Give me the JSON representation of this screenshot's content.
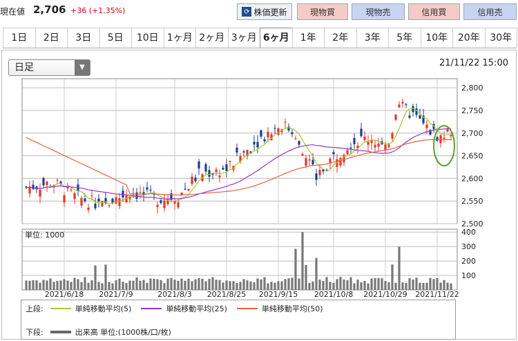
{
  "header": {
    "price_label": "現在値",
    "price_value": "2,706",
    "price_change": "+36 (+1.35%)",
    "update_button": "株価更新",
    "buy_spot": "現物買",
    "sell_spot": "現物売",
    "buy_margin": "信用買",
    "sell_margin": "信用売"
  },
  "tabs": [
    "1日",
    "2日",
    "3日",
    "5日",
    "10日",
    "1ヶ月",
    "2ヶ月",
    "3ヶ月",
    "6ヶ月",
    "1年",
    "2年",
    "3年",
    "5年",
    "10年",
    "20年",
    "30年"
  ],
  "active_tab": "6ヶ月",
  "controls": {
    "interval": "日足",
    "datetime": "21/11/22 15:00"
  },
  "chart_data": [
    {
      "type": "candlestick",
      "yticks": [
        2800,
        2750,
        2700,
        2650,
        2600,
        2550,
        2500
      ],
      "ylim": [
        2500,
        2820
      ],
      "x_tick_labels": [
        "2021/6/18",
        "2021/7/9",
        "2021/8/3",
        "2021/8/25",
        "2021/9/15",
        "2021/10/8",
        "2021/10/29",
        "2021/11/22"
      ],
      "series": [
        {
          "name": "単純移動平均(5)",
          "color": "#a8c832"
        },
        {
          "name": "単純移動平均(25)",
          "color": "#9b30c8"
        },
        {
          "name": "単純移動平均(50)",
          "color": "#e0643c"
        }
      ],
      "colors": {
        "up": "#e8342a",
        "down": "#1c3f8c"
      }
    },
    {
      "type": "bar",
      "unit_label": "単位: 1000",
      "yticks": [
        400,
        300,
        200,
        100
      ],
      "ylim": [
        0,
        420
      ],
      "series": [
        {
          "name": "出来高 単位:(1000株/口/枚)",
          "color": "#777777"
        }
      ]
    }
  ],
  "legend": {
    "upper_label": "上段:",
    "lower_label": "下段:",
    "items": [
      {
        "label": "単純移動平均(5)",
        "color": "#a8c832"
      },
      {
        "label": "単純移動平均(25)",
        "color": "#9b30c8"
      },
      {
        "label": "単純移動平均(50)",
        "color": "#e0643c"
      }
    ],
    "volume_label": "出来高 単位:(1000株/口/枚)"
  }
}
